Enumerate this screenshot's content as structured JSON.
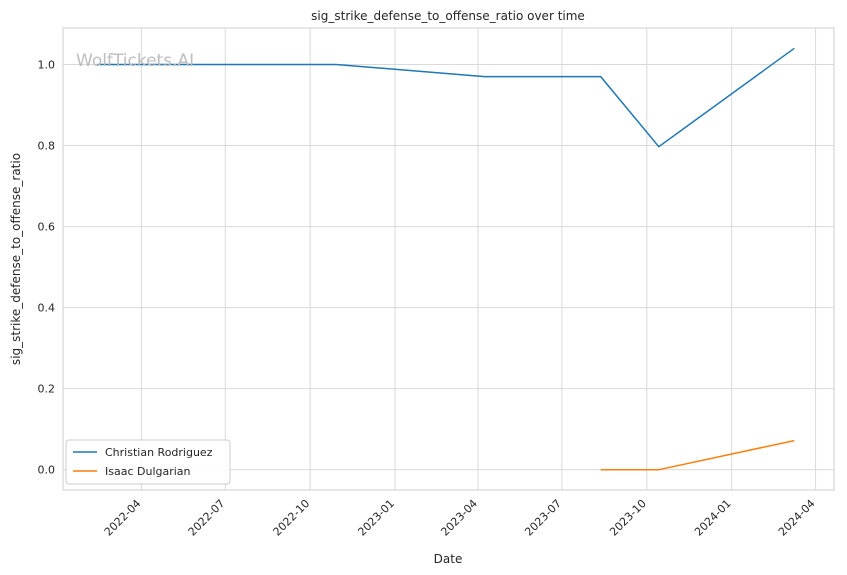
{
  "chart_data": {
    "type": "line",
    "title": "sig_strike_defense_to_offense_ratio over time",
    "xlabel": "Date",
    "ylabel": "sig_strike_defense_to_offense_ratio",
    "watermark": "WolfTickets.AI",
    "xlim": [
      "2022-01-06",
      "2024-04-21"
    ],
    "ylim": [
      -0.05,
      1.09
    ],
    "x_ticks": [
      "2022-04",
      "2022-07",
      "2022-10",
      "2023-01",
      "2023-04",
      "2023-07",
      "2023-10",
      "2024-01",
      "2024-04"
    ],
    "y_ticks": [
      0.0,
      0.2,
      0.4,
      0.6,
      0.8,
      1.0
    ],
    "y_tick_labels": [
      "0.0",
      "0.2",
      "0.4",
      "0.6",
      "0.8",
      "1.0"
    ],
    "grid": true,
    "legend_position": "lower-left",
    "series": [
      {
        "name": "Christian Rodriguez",
        "color": "#1f77b4",
        "x": [
          "2022-02-12",
          "2022-10-29",
          "2023-04-08",
          "2023-08-12",
          "2023-10-14",
          "2024-03-09"
        ],
        "y": [
          1.0,
          1.0,
          0.97,
          0.97,
          0.797,
          1.04
        ]
      },
      {
        "name": "Isaac Dulgarian",
        "color": "#ff7f0e",
        "x": [
          "2023-08-12",
          "2023-10-14",
          "2024-03-09"
        ],
        "y": [
          0.0,
          0.0,
          0.072
        ]
      }
    ]
  }
}
